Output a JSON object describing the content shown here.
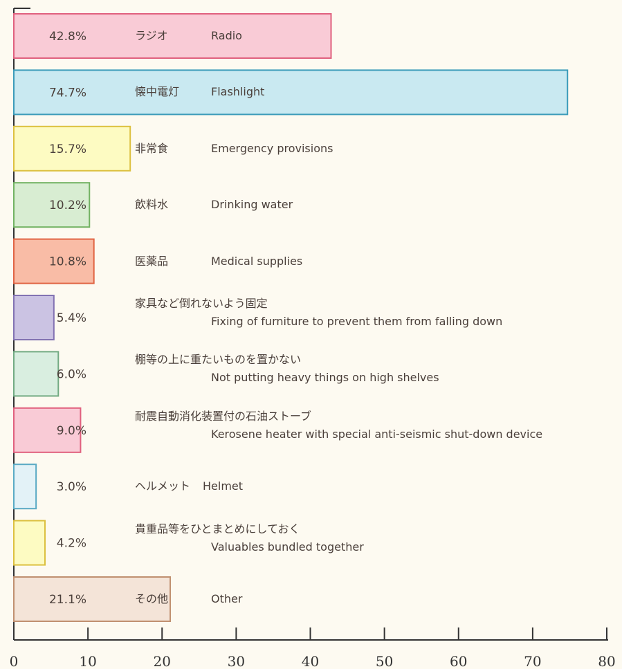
{
  "chart_data": {
    "type": "barh",
    "categories": [
      "ラジオ",
      "懐中電灯",
      "非常食",
      "飲料水",
      "医薬品",
      "家具など倒れないよう固定",
      "棚等の上に重たいものを置かない",
      "耐震自動消化装置付の石油ストーブ",
      "ヘルメット",
      "貴重品等をひとまとめにしておく",
      "その他"
    ],
    "categories_en": [
      "Radio",
      "Flashlight",
      "Emergency provisions",
      "Drinking water",
      "Medical supplies",
      "Fixing of furniture to prevent them from falling down",
      "Not putting heavy things on high shelves",
      "Kerosene heater with special anti-seismic shut-down device",
      "Helmet",
      "Valuables bundled together",
      "Other"
    ],
    "values": [
      42.8,
      74.7,
      15.7,
      10.2,
      10.8,
      5.4,
      6.0,
      9.0,
      3.0,
      4.2,
      21.1
    ],
    "value_labels": [
      "42.8%",
      "74.7%",
      "15.7%",
      "10.2%",
      "10.8%",
      "5.4%",
      "6.0%",
      "9.0%",
      "3.0%",
      "4.2%",
      "21.1%"
    ],
    "colors": [
      "#f9cbd6",
      "#c9e9f1",
      "#fdfbc2",
      "#d8edd2",
      "#f9bca6",
      "#cbc3e3",
      "#d9eee0",
      "#f9cbd6",
      "#e3f2f7",
      "#fdfbc2",
      "#f4e4d8"
    ],
    "border_colors": [
      "#e0607e",
      "#3b9bb9",
      "#dcc040",
      "#72b262",
      "#e06444",
      "#8272b2",
      "#72aa82",
      "#e0607e",
      "#5aaac4",
      "#dcc040",
      "#c09070"
    ],
    "xlim": [
      0,
      80
    ],
    "xticks": [
      0,
      10,
      20,
      30,
      40,
      50,
      60,
      70,
      80
    ]
  }
}
